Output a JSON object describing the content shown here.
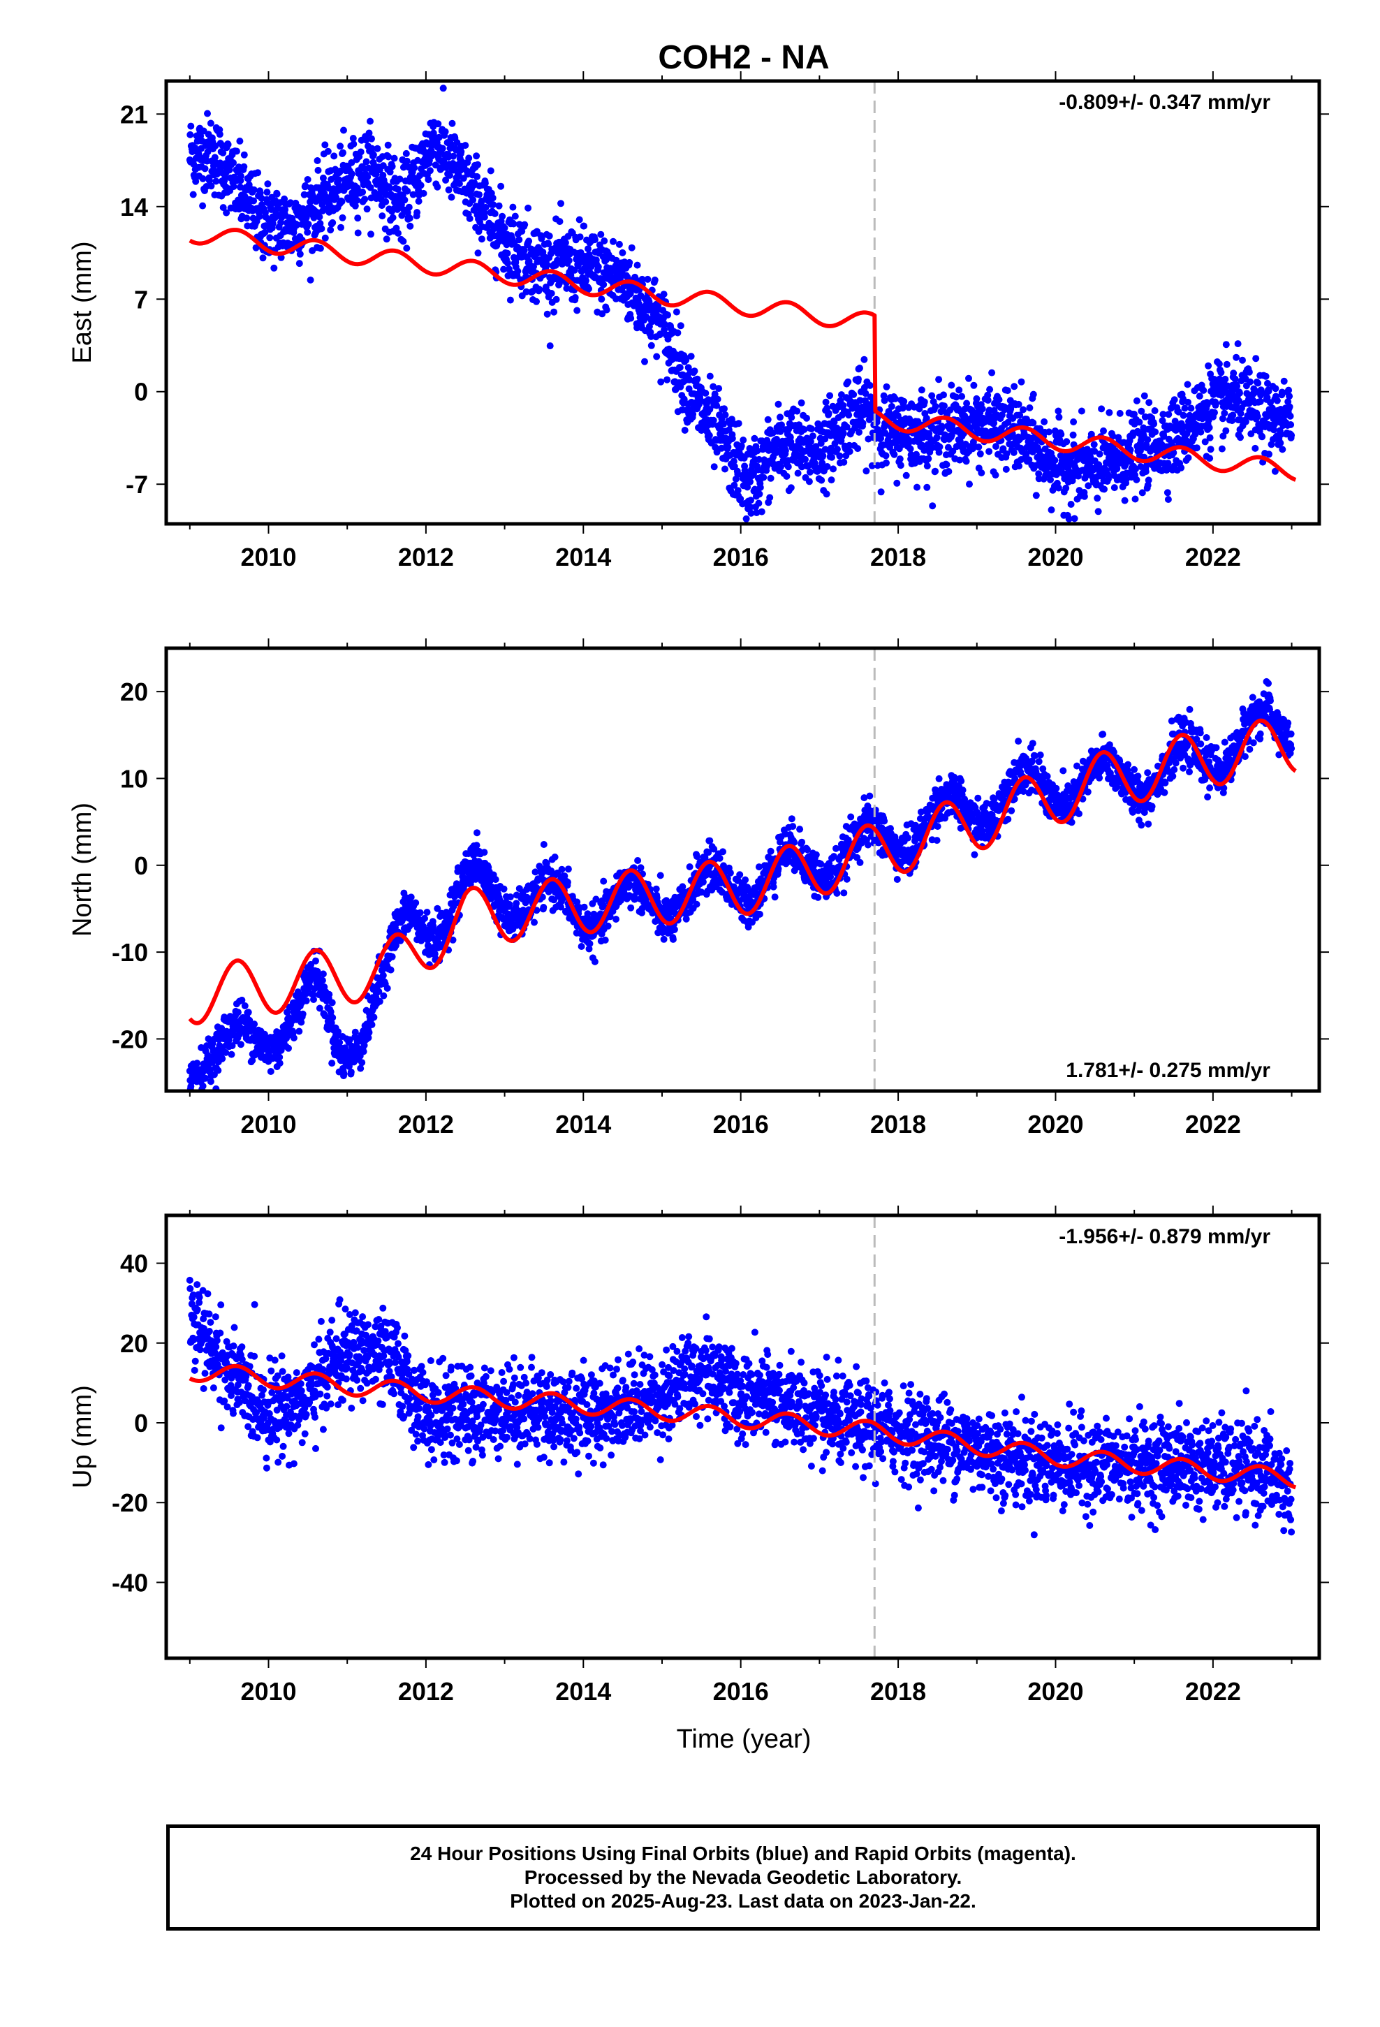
{
  "title": "COH2 - NA",
  "xlabel": "Time (year)",
  "colors": {
    "points": "#0000ff",
    "model": "#ff0000",
    "offset_line": "#bbbbbb",
    "axes": "#000000"
  },
  "caption": {
    "line1": "24 Hour Positions Using Final Orbits (blue) and Rapid Orbits (magenta).",
    "line2": "Processed by the Nevada Geodetic Laboratory.",
    "line3": "Plotted on 2025-Aug-23. Last data on 2023-Jan-22."
  },
  "chart_data": [
    {
      "type": "scatter",
      "name": "east",
      "ylabel": "East (mm)",
      "velocity_label": "-0.809+/- 0.347 mm/yr",
      "velocity_label_position": "top-right",
      "xlim": [
        2008.7,
        2023.35
      ],
      "ylim": [
        -10,
        23.5
      ],
      "xticks": [
        2010,
        2012,
        2014,
        2016,
        2018,
        2020,
        2022
      ],
      "yticks": [
        -7,
        0,
        7,
        14,
        21
      ],
      "offset_epoch": 2017.7,
      "data_trend": [
        [
          2009.0,
          18
        ],
        [
          2009.3,
          18
        ],
        [
          2009.9,
          13
        ],
        [
          2010.3,
          12.5
        ],
        [
          2010.8,
          15
        ],
        [
          2011.3,
          17
        ],
        [
          2011.7,
          14
        ],
        [
          2012.1,
          19
        ],
        [
          2012.6,
          15
        ],
        [
          2013.0,
          11.5
        ],
        [
          2013.5,
          9.5
        ],
        [
          2014.0,
          9.5
        ],
        [
          2014.5,
          8.5
        ],
        [
          2015.0,
          5
        ],
        [
          2015.4,
          -0.5
        ],
        [
          2015.8,
          -4
        ],
        [
          2016.1,
          -7
        ],
        [
          2016.5,
          -4
        ],
        [
          2017.0,
          -4.5
        ],
        [
          2017.4,
          -1.5
        ],
        [
          2017.6,
          -1.5
        ],
        [
          2017.8,
          -3
        ],
        [
          2018.5,
          -3
        ],
        [
          2019.0,
          -2.5
        ],
        [
          2019.5,
          -3
        ],
        [
          2020.0,
          -5.5
        ],
        [
          2020.5,
          -6
        ],
        [
          2021.0,
          -4.5
        ],
        [
          2021.5,
          -3.5
        ],
        [
          2022.0,
          -1
        ],
        [
          2022.3,
          -0.5
        ],
        [
          2022.7,
          -2
        ],
        [
          2023.0,
          -2.5
        ]
      ],
      "scatter_sd": 1.5,
      "model_trend": [
        [
          2009.0,
          12
        ],
        [
          2017.7,
          5.2
        ],
        [
          2017.701,
          -2
        ],
        [
          2023.05,
          -6
        ]
      ],
      "model_seasonal_amp": 0.7
    },
    {
      "type": "scatter",
      "name": "north",
      "ylabel": "North (mm)",
      "velocity_label": "1.781+/- 0.275 mm/yr",
      "velocity_label_position": "bottom-right",
      "xlim": [
        2008.7,
        2023.35
      ],
      "ylim": [
        -26,
        25
      ],
      "xticks": [
        2010,
        2012,
        2014,
        2016,
        2018,
        2020,
        2022
      ],
      "yticks": [
        -20,
        -10,
        0,
        10,
        20
      ],
      "offset_epoch": 2017.7,
      "data_trend": [
        [
          2009.0,
          -21.5
        ],
        [
          2009.5,
          -21
        ],
        [
          2009.9,
          -20
        ],
        [
          2010.3,
          -17
        ],
        [
          2010.6,
          -15
        ],
        [
          2010.9,
          -21
        ],
        [
          2011.2,
          -18
        ],
        [
          2011.5,
          -13
        ],
        [
          2011.8,
          -6
        ],
        [
          2012.2,
          -6
        ],
        [
          2012.6,
          -2
        ],
        [
          2013.0,
          -3.5
        ],
        [
          2014.0,
          -5
        ],
        [
          2015.0,
          -4
        ],
        [
          2016.0,
          -2
        ],
        [
          2017.0,
          0.5
        ],
        [
          2017.7,
          2.5
        ],
        [
          2018.5,
          5
        ],
        [
          2019.5,
          8.5
        ],
        [
          2020.5,
          9.5
        ],
        [
          2021.5,
          11
        ],
        [
          2022.5,
          15
        ],
        [
          2023.0,
          16
        ]
      ],
      "data_seasonal_amp": 2.5,
      "scatter_sd": 1.3,
      "model_trend": [
        [
          2009.0,
          -15
        ],
        [
          2011.5,
          -12
        ],
        [
          2012.5,
          -6
        ],
        [
          2014.0,
          -4.5
        ],
        [
          2016.0,
          -2.5
        ],
        [
          2017.7,
          1.5
        ],
        [
          2019.0,
          5
        ],
        [
          2020.5,
          9.5
        ],
        [
          2022.0,
          12.5
        ],
        [
          2023.05,
          14
        ]
      ],
      "model_seasonal_amp": 3.3
    },
    {
      "type": "scatter",
      "name": "up",
      "ylabel": "Up (mm)",
      "velocity_label": "-1.956+/- 0.879 mm/yr",
      "velocity_label_position": "top-right",
      "xlim": [
        2008.7,
        2023.35
      ],
      "ylim": [
        -59,
        52
      ],
      "xticks": [
        2010,
        2012,
        2014,
        2016,
        2018,
        2020,
        2022
      ],
      "yticks": [
        -40,
        -20,
        0,
        20,
        40
      ],
      "offset_epoch": 2017.7,
      "data_trend": [
        [
          2009.0,
          26
        ],
        [
          2009.3,
          18
        ],
        [
          2009.6,
          10
        ],
        [
          2010.0,
          3
        ],
        [
          2010.5,
          6
        ],
        [
          2010.8,
          15
        ],
        [
          2011.2,
          18
        ],
        [
          2011.6,
          15
        ],
        [
          2012.0,
          2
        ],
        [
          2012.5,
          2
        ],
        [
          2013.0,
          4
        ],
        [
          2014.0,
          2
        ],
        [
          2015.0,
          7
        ],
        [
          2015.6,
          14
        ],
        [
          2016.0,
          6
        ],
        [
          2016.5,
          6
        ],
        [
          2017.0,
          1
        ],
        [
          2017.7,
          -1
        ],
        [
          2018.5,
          -4
        ],
        [
          2019.5,
          -9
        ],
        [
          2020.5,
          -11
        ],
        [
          2021.5,
          -10
        ],
        [
          2022.0,
          -11
        ],
        [
          2022.7,
          -12
        ],
        [
          2023.0,
          -18
        ]
      ],
      "scatter_sd": 5.5,
      "model_trend": [
        [
          2009.0,
          13
        ],
        [
          2012.0,
          7.5
        ],
        [
          2015.0,
          3
        ],
        [
          2017.7,
          -2
        ],
        [
          2020.0,
          -8.5
        ],
        [
          2023.05,
          -14
        ]
      ],
      "model_seasonal_amp": 2.3
    }
  ]
}
